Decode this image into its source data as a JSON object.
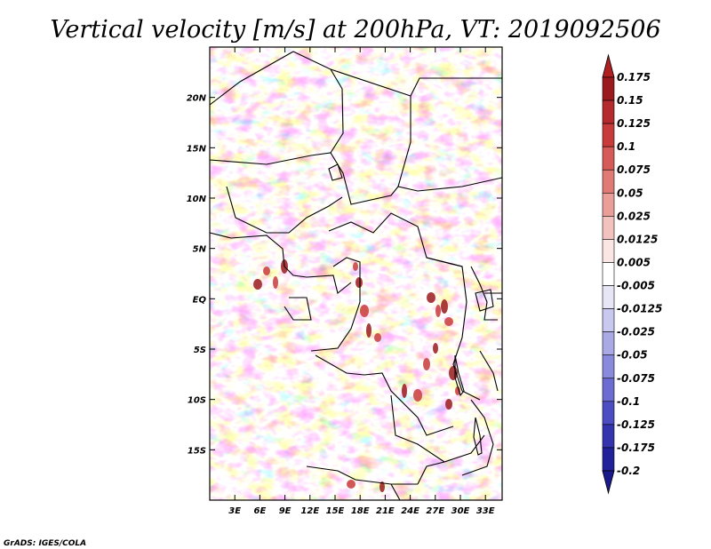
{
  "chart_data": {
    "type": "heatmap",
    "title": "Vertical velocity [m/s] at 200hPa, VT: 2019092506",
    "xlabel": "",
    "ylabel": "",
    "x_range_deg": [
      0,
      35
    ],
    "y_range_deg": [
      -20,
      25
    ],
    "x_ticks": [
      "3E",
      "6E",
      "9E",
      "12E",
      "15E",
      "18E",
      "21E",
      "24E",
      "27E",
      "30E",
      "33E"
    ],
    "x_tick_values": [
      3,
      6,
      9,
      12,
      15,
      18,
      21,
      24,
      27,
      30,
      33
    ],
    "y_ticks": [
      "20N",
      "15N",
      "10N",
      "5N",
      "EQ",
      "5S",
      "10S",
      "15S"
    ],
    "y_tick_values": [
      20,
      15,
      10,
      5,
      0,
      -5,
      -10,
      -15
    ],
    "colorbar": {
      "labels": [
        "0.175",
        "0.15",
        "0.125",
        "0.1",
        "0.075",
        "0.05",
        "0.025",
        "0.0125",
        "0.005",
        "-0.005",
        "-0.0125",
        "-0.025",
        "-0.05",
        "-0.075",
        "-0.1",
        "-0.125",
        "-0.175",
        "-0.2"
      ],
      "colors": [
        "#7a0d12",
        "#9a1a1d",
        "#b52a2c",
        "#c83b3b",
        "#d65a57",
        "#e07a74",
        "#eb9d97",
        "#f4c2be",
        "#fbe6e4",
        "#ffffff",
        "#e6e6f7",
        "#c9c9ef",
        "#a9a9e6",
        "#8a8add",
        "#6b6bd2",
        "#4d4dc3",
        "#3434ae",
        "#21219a",
        "#130d7c"
      ],
      "top_arrow_color": "#b02020",
      "bottom_arrow_color": "#1a1a8c"
    }
  },
  "credit": "GrADS: IGES/COLA",
  "map_colors": {
    "land_border": "#000000",
    "background": "#ffffff"
  }
}
